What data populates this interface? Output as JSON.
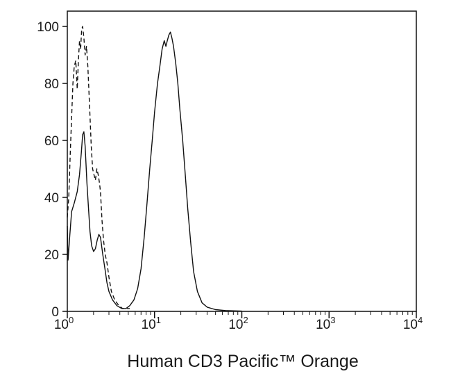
{
  "chart_data": {
    "type": "line",
    "title": "",
    "xlabel": "Human CD3 Pacific™ Orange",
    "ylabel": "",
    "x_scale": "log",
    "xlim": [
      1,
      10000
    ],
    "ylim": [
      0,
      100
    ],
    "grid": false,
    "legend": "none",
    "x_ticks": [
      {
        "value": 1,
        "base": "10",
        "exp": "0"
      },
      {
        "value": 10,
        "base": "10",
        "exp": "1"
      },
      {
        "value": 100,
        "base": "10",
        "exp": "2"
      },
      {
        "value": 1000,
        "base": "10",
        "exp": "3"
      },
      {
        "value": 10000,
        "base": "10",
        "exp": "4"
      }
    ],
    "y_ticks": [
      0,
      20,
      40,
      60,
      80,
      100
    ],
    "series": [
      {
        "style": "solid",
        "color": "#111111",
        "points": [
          [
            1.0,
            30
          ],
          [
            1.02,
            18
          ],
          [
            1.07,
            27
          ],
          [
            1.12,
            35
          ],
          [
            1.2,
            38
          ],
          [
            1.3,
            42
          ],
          [
            1.38,
            48
          ],
          [
            1.45,
            56
          ],
          [
            1.5,
            62
          ],
          [
            1.55,
            63
          ],
          [
            1.6,
            58
          ],
          [
            1.68,
            45
          ],
          [
            1.75,
            36
          ],
          [
            1.82,
            28
          ],
          [
            1.9,
            23
          ],
          [
            2.0,
            21
          ],
          [
            2.1,
            22
          ],
          [
            2.2,
            25
          ],
          [
            2.3,
            27
          ],
          [
            2.4,
            26
          ],
          [
            2.55,
            20
          ],
          [
            2.7,
            15
          ],
          [
            2.85,
            10
          ],
          [
            3.0,
            7
          ],
          [
            3.3,
            4
          ],
          [
            3.7,
            2
          ],
          [
            4.2,
            1
          ],
          [
            4.7,
            1
          ],
          [
            5.2,
            2
          ],
          [
            5.8,
            4
          ],
          [
            6.4,
            8
          ],
          [
            7.0,
            15
          ],
          [
            7.6,
            26
          ],
          [
            8.2,
            38
          ],
          [
            8.8,
            50
          ],
          [
            9.4,
            60
          ],
          [
            10.0,
            70
          ],
          [
            10.8,
            80
          ],
          [
            11.5,
            86
          ],
          [
            12.2,
            92
          ],
          [
            12.9,
            95
          ],
          [
            13.5,
            93
          ],
          [
            14.0,
            95
          ],
          [
            14.6,
            97
          ],
          [
            15.2,
            98
          ],
          [
            15.8,
            96
          ],
          [
            16.5,
            93
          ],
          [
            17.5,
            87
          ],
          [
            18.5,
            80
          ],
          [
            19.5,
            71
          ],
          [
            21.0,
            60
          ],
          [
            22.5,
            48
          ],
          [
            24.0,
            36
          ],
          [
            26.0,
            24
          ],
          [
            28.0,
            14
          ],
          [
            31.0,
            7
          ],
          [
            35.0,
            3
          ],
          [
            40.0,
            1.5
          ],
          [
            50.0,
            0.6
          ],
          [
            65.0,
            0.3
          ],
          [
            80.0,
            0.2
          ],
          [
            100.0,
            0.1
          ]
        ]
      },
      {
        "style": "dashed",
        "color": "#111111",
        "points": [
          [
            1.0,
            33
          ],
          [
            1.04,
            40
          ],
          [
            1.08,
            55
          ],
          [
            1.12,
            68
          ],
          [
            1.16,
            80
          ],
          [
            1.2,
            86
          ],
          [
            1.25,
            88
          ],
          [
            1.3,
            78
          ],
          [
            1.34,
            88
          ],
          [
            1.38,
            95
          ],
          [
            1.42,
            92
          ],
          [
            1.46,
            99
          ],
          [
            1.5,
            100
          ],
          [
            1.55,
            96
          ],
          [
            1.6,
            90
          ],
          [
            1.66,
            93
          ],
          [
            1.72,
            86
          ],
          [
            1.8,
            72
          ],
          [
            1.88,
            58
          ],
          [
            1.95,
            50
          ],
          [
            2.02,
            48
          ],
          [
            2.1,
            46
          ],
          [
            2.18,
            50
          ],
          [
            2.26,
            48
          ],
          [
            2.34,
            45
          ],
          [
            2.4,
            42
          ],
          [
            2.5,
            32
          ],
          [
            2.6,
            25
          ],
          [
            2.72,
            20
          ],
          [
            2.85,
            17
          ],
          [
            3.0,
            12
          ],
          [
            3.2,
            7
          ],
          [
            3.5,
            4
          ],
          [
            3.9,
            2
          ],
          [
            4.3,
            1
          ],
          [
            4.8,
            1
          ],
          [
            5.2,
            1
          ]
        ]
      }
    ]
  }
}
